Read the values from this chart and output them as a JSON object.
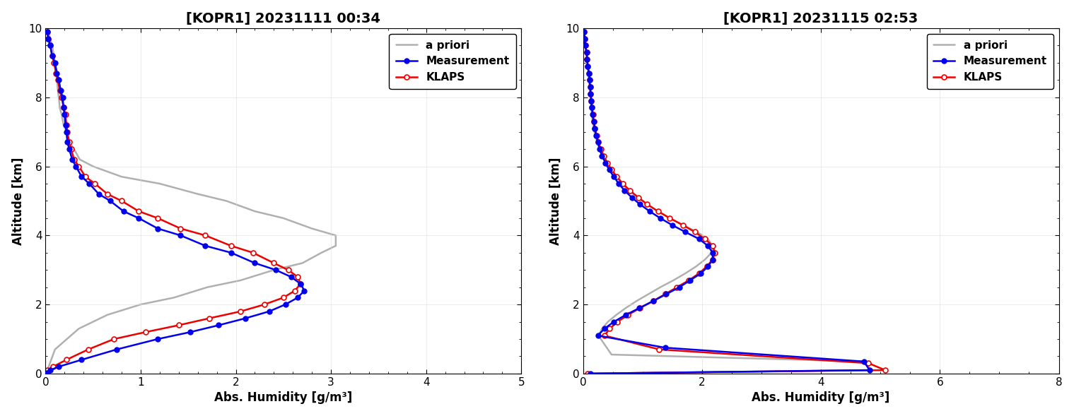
{
  "plot1": {
    "title": "[KOPR1] 20231111 00:34",
    "xlabel": "Abs. Humidity [g/m³]",
    "ylabel": "Altitude [km]",
    "xlim": [
      0,
      5
    ],
    "ylim": [
      0,
      10
    ],
    "xticks": [
      0,
      1,
      2,
      3,
      4,
      5
    ],
    "yticks": [
      0,
      2,
      4,
      6,
      8,
      10
    ],
    "apriori_h": [
      0.03,
      0.05,
      0.07,
      0.09,
      0.1,
      0.11,
      0.12,
      0.13,
      0.14,
      0.15,
      0.17,
      0.19,
      0.22,
      0.25,
      0.3,
      0.36,
      0.5,
      0.8,
      1.2,
      1.6,
      1.9,
      2.2,
      2.5,
      2.8,
      3.05,
      3.05,
      2.9,
      2.7,
      2.4,
      2.05,
      1.7,
      1.35,
      1.0,
      0.65,
      0.35,
      0.1,
      0.02
    ],
    "apriori_z": [
      9.9,
      9.7,
      9.5,
      9.2,
      9.0,
      8.7,
      8.5,
      8.2,
      8.0,
      7.7,
      7.5,
      7.2,
      7.0,
      6.7,
      6.5,
      6.2,
      6.0,
      5.7,
      5.5,
      5.2,
      5.0,
      4.7,
      4.5,
      4.2,
      4.0,
      3.7,
      3.5,
      3.2,
      3.0,
      2.7,
      2.5,
      2.2,
      2.0,
      1.7,
      1.3,
      0.7,
      0.1
    ],
    "meas_h": [
      0.02,
      0.03,
      0.05,
      0.07,
      0.1,
      0.12,
      0.14,
      0.16,
      0.18,
      0.19,
      0.2,
      0.21,
      0.22,
      0.23,
      0.25,
      0.28,
      0.32,
      0.38,
      0.46,
      0.56,
      0.68,
      0.82,
      0.98,
      1.18,
      1.42,
      1.68,
      1.95,
      2.2,
      2.42,
      2.58,
      2.68,
      2.72,
      2.65,
      2.52,
      2.35,
      2.1,
      1.82,
      1.52,
      1.18,
      0.75,
      0.38,
      0.14,
      0.05,
      0.02
    ],
    "meas_z": [
      9.9,
      9.7,
      9.5,
      9.2,
      9.0,
      8.7,
      8.5,
      8.2,
      8.0,
      7.7,
      7.5,
      7.2,
      7.0,
      6.7,
      6.5,
      6.2,
      6.0,
      5.7,
      5.5,
      5.2,
      5.0,
      4.7,
      4.5,
      4.2,
      4.0,
      3.7,
      3.5,
      3.2,
      3.0,
      2.8,
      2.6,
      2.4,
      2.2,
      2.0,
      1.8,
      1.6,
      1.4,
      1.2,
      1.0,
      0.7,
      0.4,
      0.2,
      0.1,
      0.02
    ],
    "klaps_h": [
      0.02,
      0.03,
      0.05,
      0.07,
      0.09,
      0.11,
      0.13,
      0.15,
      0.17,
      0.19,
      0.21,
      0.22,
      0.23,
      0.25,
      0.27,
      0.3,
      0.35,
      0.42,
      0.52,
      0.65,
      0.8,
      0.98,
      1.18,
      1.42,
      1.68,
      1.95,
      2.18,
      2.4,
      2.55,
      2.65,
      2.68,
      2.62,
      2.5,
      2.3,
      2.05,
      1.72,
      1.4,
      1.05,
      0.72,
      0.45,
      0.22,
      0.08,
      0.02,
      0.0
    ],
    "klaps_z": [
      9.9,
      9.7,
      9.5,
      9.2,
      9.0,
      8.7,
      8.5,
      8.2,
      8.0,
      7.7,
      7.5,
      7.2,
      7.0,
      6.7,
      6.5,
      6.2,
      6.0,
      5.7,
      5.5,
      5.2,
      5.0,
      4.7,
      4.5,
      4.2,
      4.0,
      3.7,
      3.5,
      3.2,
      3.0,
      2.8,
      2.6,
      2.4,
      2.2,
      2.0,
      1.8,
      1.6,
      1.4,
      1.2,
      1.0,
      0.7,
      0.4,
      0.2,
      0.1,
      0.02
    ]
  },
  "plot2": {
    "title": "[KOPR1] 20231115 02:53",
    "xlabel": "Abs. Humidity [g/m³]",
    "ylabel": "Altitude [km]",
    "xlim": [
      0,
      8
    ],
    "ylim": [
      0,
      10
    ],
    "xticks": [
      0,
      2,
      4,
      6,
      8
    ],
    "yticks": [
      0,
      2,
      4,
      6,
      8,
      10
    ],
    "apriori_h": [
      0.02,
      0.03,
      0.04,
      0.06,
      0.07,
      0.08,
      0.09,
      0.1,
      0.11,
      0.12,
      0.13,
      0.14,
      0.15,
      0.16,
      0.18,
      0.2,
      0.24,
      0.28,
      0.34,
      0.4,
      0.48,
      0.56,
      0.66,
      0.78,
      0.92,
      1.08,
      1.26,
      1.46,
      1.68,
      1.92,
      2.1,
      2.18,
      2.16,
      2.05,
      1.9,
      1.72,
      1.52,
      1.3,
      1.1,
      0.9,
      0.72,
      0.56,
      0.42,
      0.32,
      0.26,
      0.48,
      4.72,
      4.85,
      0.1
    ],
    "apriori_z": [
      9.9,
      9.7,
      9.5,
      9.3,
      9.1,
      8.9,
      8.7,
      8.5,
      8.3,
      8.1,
      7.9,
      7.7,
      7.5,
      7.3,
      7.1,
      6.9,
      6.7,
      6.5,
      6.3,
      6.1,
      5.9,
      5.7,
      5.5,
      5.3,
      5.1,
      4.9,
      4.7,
      4.5,
      4.3,
      4.1,
      3.9,
      3.7,
      3.5,
      3.3,
      3.1,
      2.9,
      2.7,
      2.5,
      2.3,
      2.1,
      1.9,
      1.7,
      1.5,
      1.3,
      1.1,
      0.55,
      0.35,
      0.1,
      0.0
    ],
    "meas_h": [
      0.02,
      0.03,
      0.04,
      0.06,
      0.07,
      0.08,
      0.1,
      0.11,
      0.12,
      0.13,
      0.14,
      0.15,
      0.16,
      0.18,
      0.2,
      0.22,
      0.25,
      0.28,
      0.32,
      0.38,
      0.44,
      0.52,
      0.6,
      0.7,
      0.82,
      0.96,
      1.12,
      1.3,
      1.5,
      1.72,
      1.95,
      2.1,
      2.18,
      2.18,
      2.1,
      1.98,
      1.8,
      1.62,
      1.4,
      1.18,
      0.95,
      0.72,
      0.52,
      0.36,
      0.25,
      1.38,
      4.72,
      4.82,
      0.12
    ],
    "meas_z": [
      9.9,
      9.7,
      9.5,
      9.3,
      9.1,
      8.9,
      8.7,
      8.5,
      8.3,
      8.1,
      7.9,
      7.7,
      7.5,
      7.3,
      7.1,
      6.9,
      6.7,
      6.5,
      6.3,
      6.1,
      5.9,
      5.7,
      5.5,
      5.3,
      5.1,
      4.9,
      4.7,
      4.5,
      4.3,
      4.1,
      3.9,
      3.7,
      3.5,
      3.3,
      3.1,
      2.9,
      2.7,
      2.5,
      2.3,
      2.1,
      1.9,
      1.7,
      1.5,
      1.3,
      1.1,
      0.75,
      0.35,
      0.1,
      0.0
    ],
    "klaps_h": [
      0.02,
      0.03,
      0.04,
      0.06,
      0.07,
      0.08,
      0.1,
      0.11,
      0.12,
      0.13,
      0.14,
      0.15,
      0.17,
      0.18,
      0.2,
      0.23,
      0.26,
      0.3,
      0.35,
      0.41,
      0.48,
      0.57,
      0.67,
      0.79,
      0.93,
      1.08,
      1.26,
      1.46,
      1.68,
      1.88,
      2.05,
      2.18,
      2.22,
      2.18,
      2.08,
      1.95,
      1.78,
      1.58,
      1.38,
      1.18,
      0.96,
      0.76,
      0.58,
      0.45,
      0.36,
      1.28,
      4.8,
      5.08,
      0.08
    ],
    "klaps_z": [
      9.9,
      9.7,
      9.5,
      9.3,
      9.1,
      8.9,
      8.7,
      8.5,
      8.3,
      8.1,
      7.9,
      7.7,
      7.5,
      7.3,
      7.1,
      6.9,
      6.7,
      6.5,
      6.3,
      6.1,
      5.9,
      5.7,
      5.5,
      5.3,
      5.1,
      4.9,
      4.7,
      4.5,
      4.3,
      4.1,
      3.9,
      3.7,
      3.5,
      3.3,
      3.1,
      2.9,
      2.7,
      2.5,
      2.3,
      2.1,
      1.9,
      1.7,
      1.5,
      1.3,
      1.1,
      0.7,
      0.3,
      0.1,
      0.0
    ]
  },
  "apriori_color": "#b0b0b0",
  "meas_color": "#0000ee",
  "klaps_color": "#ee0000",
  "line_width": 1.8,
  "marker_size_meas": 5,
  "marker_size_klaps": 5,
  "title_fontsize": 14,
  "label_fontsize": 12,
  "tick_fontsize": 11,
  "legend_fontsize": 11,
  "bg_color": "#ffffff"
}
